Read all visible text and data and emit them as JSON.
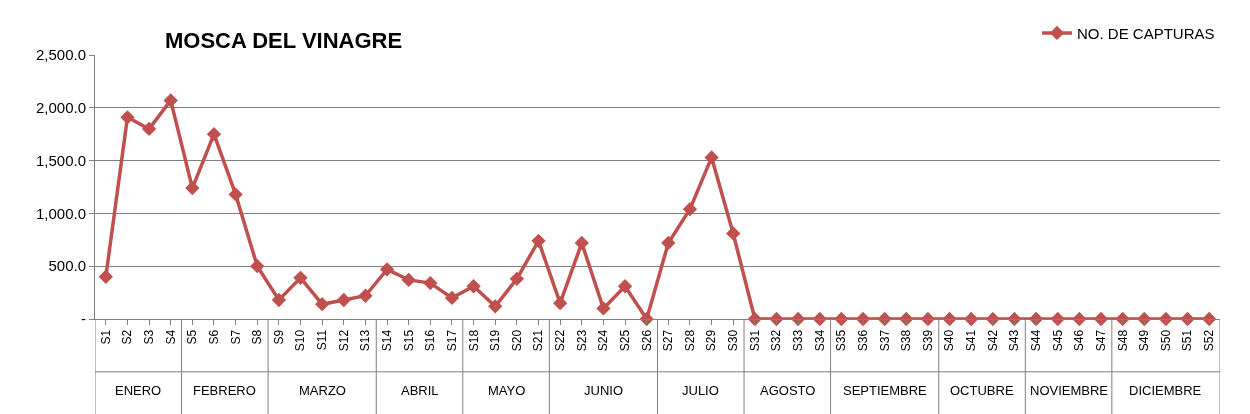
{
  "chart_data": {
    "type": "line",
    "title": "MOSCA DEL VINAGRE",
    "categories": [
      "S1",
      "S2",
      "S3",
      "S4",
      "S5",
      "S6",
      "S7",
      "S8",
      "S9",
      "S10",
      "S11",
      "S12",
      "S13",
      "S14",
      "S15",
      "S16",
      "S17",
      "S18",
      "S19",
      "S20",
      "S21",
      "S22",
      "S23",
      "S24",
      "S25",
      "S26",
      "S27",
      "S28",
      "S29",
      "S30",
      "S31",
      "S32",
      "S33",
      "S34",
      "S35",
      "S36",
      "S37",
      "S38",
      "S39",
      "S40",
      "S41",
      "S42",
      "S43",
      "S44",
      "S45",
      "S46",
      "S47",
      "S48",
      "S49",
      "S50",
      "S51",
      "S52"
    ],
    "series": [
      {
        "name": "NO. DE CAPTURAS",
        "color": "#c0504d",
        "values": [
          400,
          1910,
          1800,
          2070,
          1240,
          1750,
          1180,
          500,
          180,
          390,
          140,
          180,
          220,
          470,
          370,
          340,
          200,
          310,
          120,
          380,
          740,
          150,
          720,
          100,
          310,
          0,
          720,
          1040,
          1530,
          810,
          0,
          0,
          0,
          0,
          0,
          0,
          0,
          0,
          0,
          0,
          0,
          0,
          0,
          0,
          0,
          0,
          0,
          0,
          0,
          0,
          0,
          0
        ]
      }
    ],
    "ylim": [
      0,
      2500
    ],
    "yticks": [
      {
        "value": 0,
        "label": "-"
      },
      {
        "value": 500,
        "label": "500.0"
      },
      {
        "value": 1000,
        "label": "1,000.0"
      },
      {
        "value": 1500,
        "label": "1,500.0"
      },
      {
        "value": 2000,
        "label": "2,000.0"
      },
      {
        "value": 2500,
        "label": "2,500.0"
      }
    ],
    "grid": "y",
    "legend": "top right",
    "marker": "diamond",
    "line_style": "solid",
    "annotations": [
      "ENERO",
      "FEBRERO",
      "MARZO",
      "ABRIL",
      "MAYO",
      "JUNIO",
      "JULIO",
      "AGOSTO",
      "SEPTIEMBRE",
      "OCTUBRE",
      "NOVIEMBRE",
      "DICIEMBRE"
    ]
  }
}
